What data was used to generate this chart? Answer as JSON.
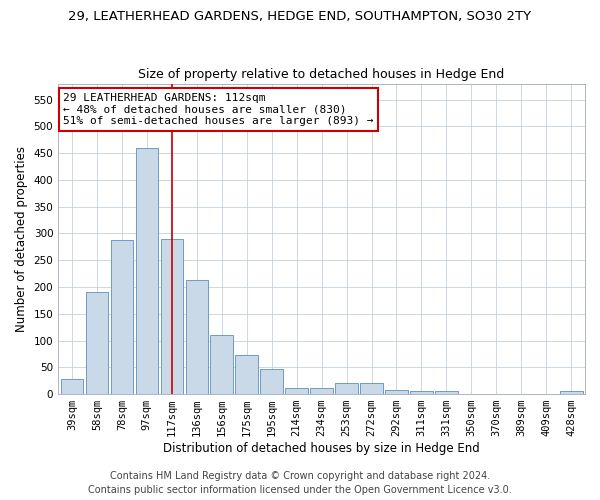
{
  "title": "29, LEATHERHEAD GARDENS, HEDGE END, SOUTHAMPTON, SO30 2TY",
  "subtitle": "Size of property relative to detached houses in Hedge End",
  "xlabel": "Distribution of detached houses by size in Hedge End",
  "ylabel": "Number of detached properties",
  "categories": [
    "39sqm",
    "58sqm",
    "78sqm",
    "97sqm",
    "117sqm",
    "136sqm",
    "156sqm",
    "175sqm",
    "195sqm",
    "214sqm",
    "234sqm",
    "253sqm",
    "272sqm",
    "292sqm",
    "311sqm",
    "331sqm",
    "350sqm",
    "370sqm",
    "389sqm",
    "409sqm",
    "428sqm"
  ],
  "values": [
    28,
    190,
    287,
    460,
    290,
    213,
    110,
    73,
    46,
    12,
    12,
    20,
    20,
    7,
    5,
    5,
    0,
    0,
    0,
    0,
    5
  ],
  "bar_color": "#c9d9e8",
  "bar_edge_color": "#5a8fc0",
  "vline_x_index": 4,
  "vline_color": "#cc0000",
  "annotation_text": "29 LEATHERHEAD GARDENS: 112sqm\n← 48% of detached houses are smaller (830)\n51% of semi-detached houses are larger (893) →",
  "annotation_box_color": "#ffffff",
  "annotation_box_edge": "#cc0000",
  "ylim": [
    0,
    580
  ],
  "yticks": [
    0,
    50,
    100,
    150,
    200,
    250,
    300,
    350,
    400,
    450,
    500,
    550
  ],
  "footer_line1": "Contains HM Land Registry data © Crown copyright and database right 2024.",
  "footer_line2": "Contains public sector information licensed under the Open Government Licence v3.0.",
  "title_fontsize": 9.5,
  "subtitle_fontsize": 9,
  "axis_label_fontsize": 8.5,
  "tick_fontsize": 7.5,
  "annotation_fontsize": 8,
  "footer_fontsize": 7
}
